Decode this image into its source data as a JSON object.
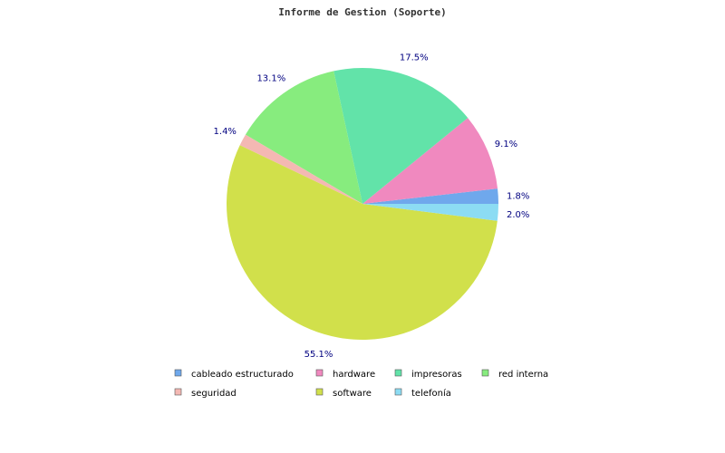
{
  "chart_data": {
    "type": "pie",
    "title": "Informe de Gestion (Soporte)",
    "categories": [
      "cableado estructurado",
      "hardware",
      "impresoras",
      "red interna",
      "seguridad",
      "software",
      "telefonía"
    ],
    "values": [
      1.8,
      9.1,
      17.5,
      13.1,
      1.4,
      55.1,
      2.0
    ],
    "labels": [
      "1.8%",
      "9.1%",
      "17.5%",
      "13.1%",
      "1.4%",
      "55.1%",
      "2.0%"
    ],
    "colors": [
      "#6fa8ec",
      "#f089bf",
      "#62e3a9",
      "#87ec7e",
      "#f4b8b3",
      "#d1e04b",
      "#8cdcf3"
    ],
    "legend_position": "bottom"
  }
}
